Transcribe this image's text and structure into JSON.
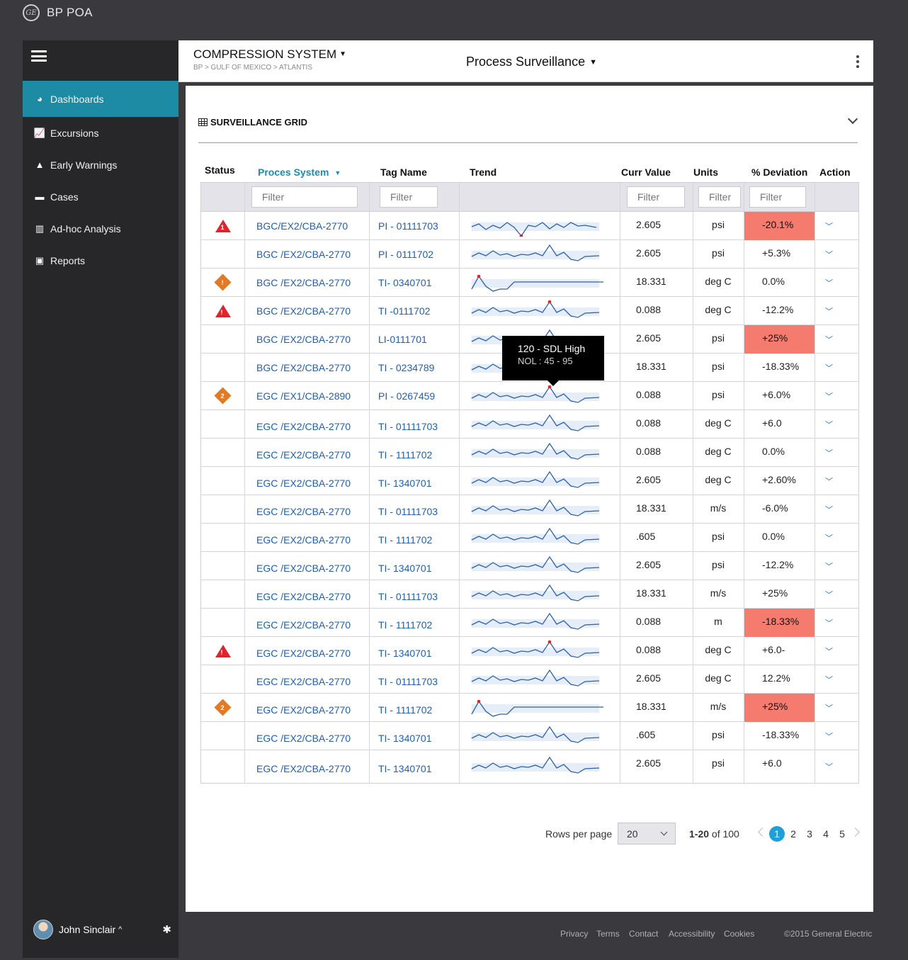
{
  "app": {
    "title": "BP POA",
    "logo_text": "GE"
  },
  "sidebar": {
    "items": [
      {
        "label": "Dashboards",
        "icon": "dashboard-icon",
        "glyph": "◕",
        "active": true
      },
      {
        "label": "Excursions",
        "icon": "line-chart-icon",
        "glyph": "📈",
        "active": false
      },
      {
        "label": "Early Warnings",
        "icon": "warning-icon",
        "glyph": "▲",
        "active": false
      },
      {
        "label": "Cases",
        "icon": "briefcase-icon",
        "glyph": "▬",
        "active": false
      },
      {
        "label": "Ad-hoc Analysis",
        "icon": "bar-chart-icon",
        "glyph": "▥",
        "active": false
      },
      {
        "label": "Reports",
        "icon": "report-icon",
        "glyph": "▣",
        "active": false
      }
    ],
    "user": {
      "name": "John Sinclair"
    }
  },
  "header": {
    "system_title": "COMPRESSION SYSTEM",
    "breadcrumb": "BP > GULF OF MEXICO > ATLANTIS",
    "view_title": "Process Surveillance"
  },
  "grid": {
    "title": "SURVEILLANCE GRID",
    "columns": {
      "status": "Status",
      "system": "Proces System",
      "tag": "Tag Name",
      "trend": "Trend",
      "value": "Curr Value",
      "units": "Units",
      "deviation": "% Deviation",
      "action": "Action"
    },
    "filter_placeholder": "Filter",
    "rows": [
      {
        "status": "alarm",
        "status_num": "1",
        "system": "BGC/EX2/CBA-2770",
        "tag": "PI - 01111703",
        "value": "2.605",
        "units": "psi",
        "deviation": "-20.1%",
        "dev_alert": true,
        "trend": "a",
        "trend_dot": 1
      },
      {
        "status": "",
        "status_num": "",
        "system": "BGC /EX2/CBA-2770",
        "tag": "PI - 0111702",
        "value": "2.605",
        "units": "psi",
        "deviation": "+5.3%",
        "dev_alert": false,
        "trend": "b",
        "trend_dot": 0
      },
      {
        "status": "warning",
        "status_num": "!",
        "system": "BGC /EX2/CBA-2770",
        "tag": "TI- 0340701",
        "value": "18.331",
        "units": "deg C",
        "deviation": "0.0%",
        "dev_alert": false,
        "trend": "c",
        "trend_dot": 1
      },
      {
        "status": "alarm",
        "status_num": "!",
        "system": "BGC /EX2/CBA-2770",
        "tag": "TI -0111702",
        "value": "0.088",
        "units": "deg C",
        "deviation": "-12.2%",
        "dev_alert": false,
        "trend": "b",
        "trend_dot": 1
      },
      {
        "status": "",
        "status_num": "",
        "system": "BGC /EX2/CBA-2770",
        "tag": "LI-0111701",
        "value": "2.605",
        "units": "psi",
        "deviation": "+25%",
        "dev_alert": true,
        "trend": "b",
        "trend_dot": 0
      },
      {
        "status": "",
        "status_num": "",
        "system": "BGC /EX2/CBA-2770",
        "tag": "TI - 0234789",
        "value": "18.331",
        "units": "psi",
        "deviation": "-18.33%",
        "dev_alert": false,
        "trend": "b",
        "trend_dot": 0
      },
      {
        "status": "warning",
        "status_num": "2",
        "system": "EGC /EX1/CBA-2890",
        "tag": "PI - 0267459",
        "value": "0.088",
        "units": "psi",
        "deviation": "+6.0%",
        "dev_alert": false,
        "trend": "b",
        "trend_dot": 1
      },
      {
        "status": "",
        "status_num": "",
        "system": "EGC /EX2/CBA-2770",
        "tag": "TI - 01111703",
        "value": "0.088",
        "units": "deg C",
        "deviation": "+6.0",
        "dev_alert": false,
        "trend": "b",
        "trend_dot": 0
      },
      {
        "status": "",
        "status_num": "",
        "system": "EGC /EX2/CBA-2770",
        "tag": "TI - 1111702",
        "value": "0.088",
        "units": "deg C",
        "deviation": "0.0%",
        "dev_alert": false,
        "trend": "b",
        "trend_dot": 0
      },
      {
        "status": "",
        "status_num": "",
        "system": "EGC /EX2/CBA-2770",
        "tag": "TI- 1340701",
        "value": "2.605",
        "units": "deg C",
        "deviation": "+2.60%",
        "dev_alert": false,
        "trend": "b",
        "trend_dot": 0
      },
      {
        "status": "",
        "status_num": "",
        "system": "EGC /EX2/CBA-2770",
        "tag": "TI - 01111703",
        "value": "18.331",
        "units": "m/s",
        "deviation": "-6.0%",
        "dev_alert": false,
        "trend": "b",
        "trend_dot": 0
      },
      {
        "status": "",
        "status_num": "",
        "system": "EGC /EX2/CBA-2770",
        "tag": "TI - 1111702",
        "value": ".605",
        "units": "psi",
        "deviation": "0.0%",
        "dev_alert": false,
        "trend": "b",
        "trend_dot": 0
      },
      {
        "status": "",
        "status_num": "",
        "system": "EGC /EX2/CBA-2770",
        "tag": "TI- 1340701",
        "value": "2.605",
        "units": "psi",
        "deviation": "-12.2%",
        "dev_alert": false,
        "trend": "b",
        "trend_dot": 0
      },
      {
        "status": "",
        "status_num": "",
        "system": "EGC /EX2/CBA-2770",
        "tag": "TI - 01111703",
        "value": "18.331",
        "units": "m/s",
        "deviation": "+25%",
        "dev_alert": false,
        "trend": "b",
        "trend_dot": 0
      },
      {
        "status": "",
        "status_num": "",
        "system": "EGC /EX2/CBA-2770",
        "tag": "TI - 1111702",
        "value": "0.088",
        "units": "m",
        "deviation": "-18.33%",
        "dev_alert": true,
        "trend": "b",
        "trend_dot": 0
      },
      {
        "status": "alarm",
        "status_num": "!",
        "system": "EGC /EX2/CBA-2770",
        "tag": "TI- 1340701",
        "value": "0.088",
        "units": "deg C",
        "deviation": "+6.0-",
        "dev_alert": false,
        "trend": "b",
        "trend_dot": 1
      },
      {
        "status": "",
        "status_num": "",
        "system": "EGC /EX2/CBA-2770",
        "tag": "TI - 01111703",
        "value": "2.605",
        "units": "deg C",
        "deviation": "12.2%",
        "dev_alert": false,
        "trend": "b",
        "trend_dot": 0
      },
      {
        "status": "warning",
        "status_num": "2",
        "system": "EGC /EX2/CBA-2770",
        "tag": "TI - 1111702",
        "value": "18.331",
        "units": "m/s",
        "deviation": "+25%",
        "dev_alert": true,
        "trend": "c",
        "trend_dot": 1
      },
      {
        "status": "",
        "status_num": "",
        "system": "EGC /EX2/CBA-2770",
        "tag": "TI- 1340701",
        "value": ".605",
        "units": "psi",
        "deviation": "-18.33%",
        "dev_alert": false,
        "trend": "b",
        "trend_dot": 0
      },
      {
        "status": "",
        "status_num": "",
        "system": "EGC /EX2/CBA-2770",
        "tag": "TI- 1340701",
        "value": "2.605",
        "units": "psi",
        "deviation": "+6.0",
        "dev_alert": false,
        "trend": "b",
        "trend_dot": 0
      }
    ],
    "tooltip": {
      "main": "120 -  SDL High",
      "sub": "NOL  : 45 - 95"
    }
  },
  "pagination": {
    "rows_per_page_label": "Rows per page",
    "rows_per_page": "20",
    "range_bold": "1-20",
    "range_rest": " of 100",
    "pages": [
      "1",
      "2",
      "3",
      "4",
      "5"
    ],
    "current": "1"
  },
  "footer": {
    "links": [
      "Privacy",
      "Terms",
      "Contact",
      "Accessibility",
      "Cookies"
    ],
    "copyright": "©2015 General Electric"
  },
  "colors": {
    "accent": "#1e8ba4",
    "alarm": "#e0242b",
    "warning": "#e27a25",
    "dev_alert": "#f47b6e",
    "link": "#1f5fb4"
  }
}
